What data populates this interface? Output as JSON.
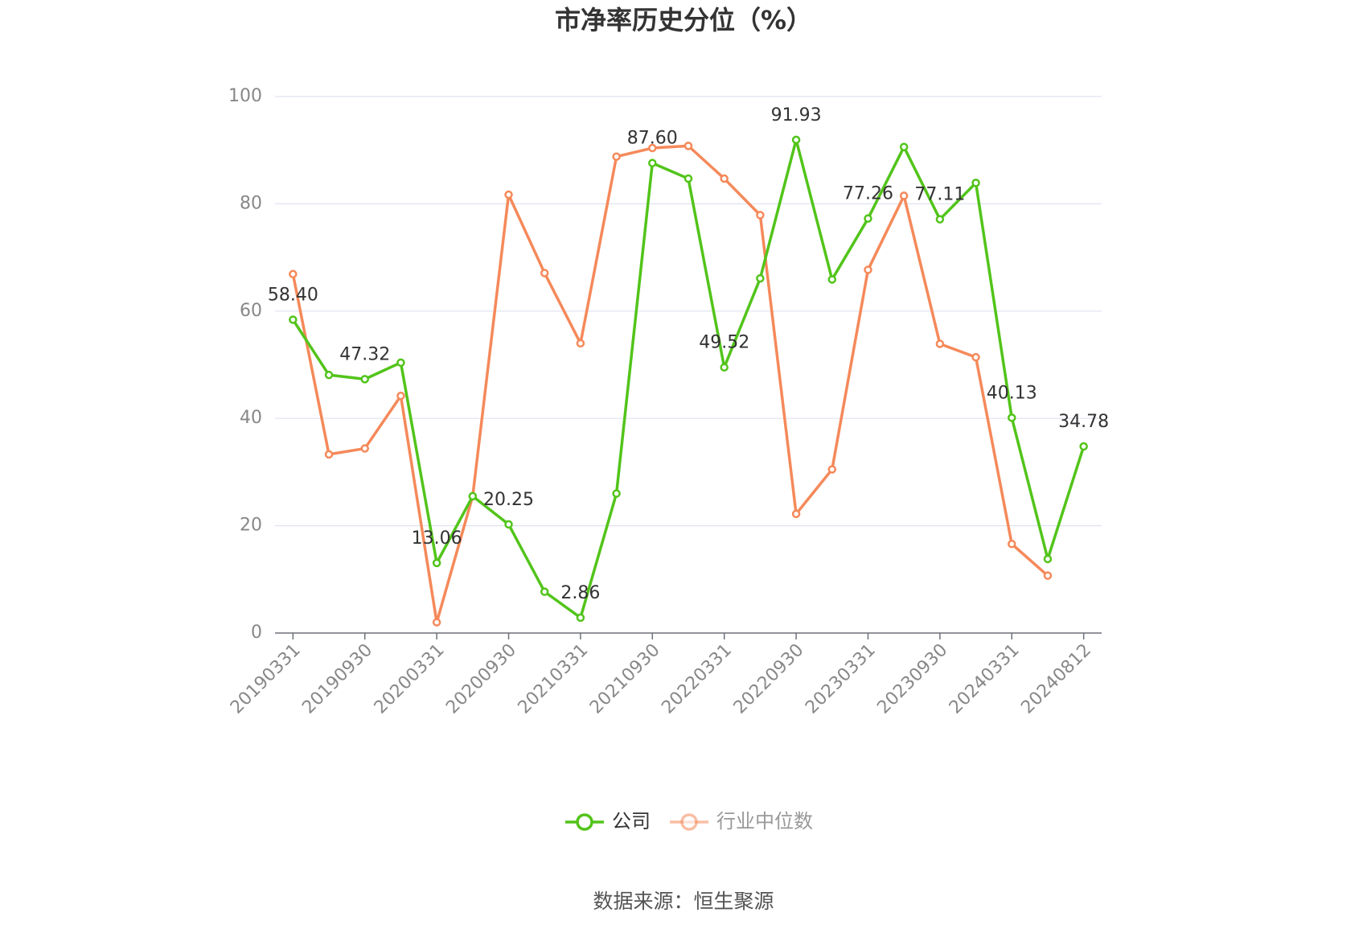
{
  "chart_data": {
    "type": "line",
    "title": "市净率历史分位（%）",
    "categories": [
      "20190331",
      null,
      "20190930",
      null,
      "20200331",
      null,
      "20200930",
      null,
      "20210331",
      null,
      "20210930",
      null,
      "20220331",
      null,
      "20220930",
      null,
      "20230331",
      null,
      "20230930",
      null,
      "20240331",
      null,
      "20240812"
    ],
    "series": [
      {
        "name": "公司",
        "color": "#52c41a",
        "values": [
          58.4,
          48.1,
          47.32,
          50.4,
          13.06,
          25.5,
          20.25,
          7.7,
          2.86,
          26.0,
          87.6,
          84.7,
          49.52,
          66.1,
          91.93,
          65.9,
          77.26,
          90.6,
          77.11,
          83.9,
          40.13,
          13.8,
          34.78
        ],
        "value_labels": [
          "58.40",
          null,
          "47.32",
          null,
          "13.06",
          null,
          "20.25",
          null,
          "2.86",
          null,
          "87.60",
          null,
          "49.52",
          null,
          "91.93",
          null,
          "77.26",
          null,
          "77.11",
          null,
          "40.13",
          null,
          "34.78"
        ]
      },
      {
        "name": "行业中位数",
        "color": "#f5895a",
        "values": [
          66.9,
          33.3,
          34.4,
          44.2,
          2.0,
          25.5,
          81.7,
          67.1,
          54.0,
          88.8,
          90.4,
          90.8,
          84.7,
          77.9,
          22.2,
          30.5,
          67.7,
          81.5,
          53.9,
          51.4,
          16.6,
          10.7,
          null
        ]
      }
    ],
    "ylim": [
      0,
      100
    ],
    "yticks": [
      0,
      20,
      40,
      60,
      80,
      100
    ],
    "grid": true,
    "source": "数据来源：恒生聚源"
  }
}
